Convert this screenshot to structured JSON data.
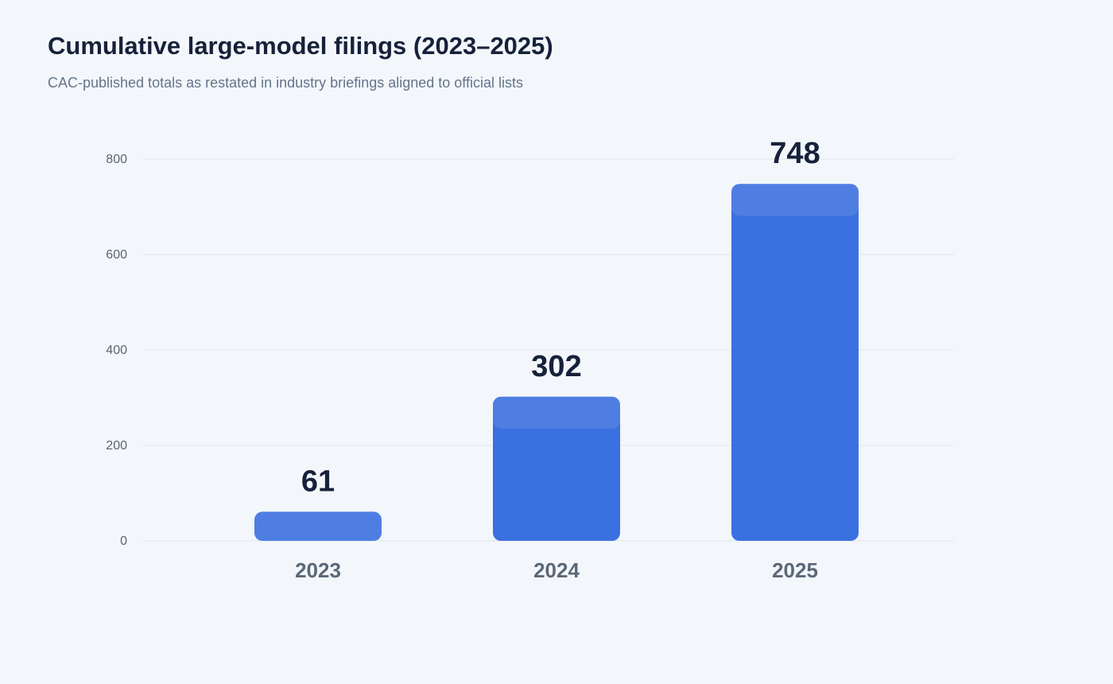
{
  "chart_data": {
    "type": "bar",
    "title": "Cumulative large-model filings (2023–2025)",
    "subtitle": "CAC-published totals as restated in industry briefings aligned to official lists",
    "categories": [
      "2023",
      "2024",
      "2025"
    ],
    "values": [
      61,
      302,
      748
    ],
    "color": "#3b70e0",
    "ylim": [
      0,
      800
    ],
    "yticks": [
      0,
      200,
      400,
      600,
      800
    ],
    "grid": true
  }
}
